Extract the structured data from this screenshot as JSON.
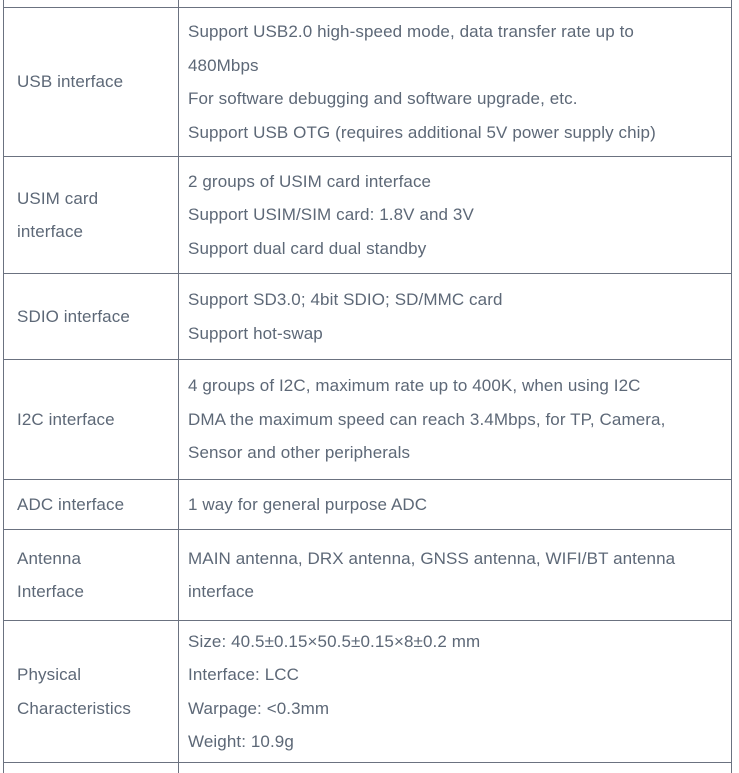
{
  "colors": {
    "text": "#5d6877",
    "border": "#6b7280",
    "background": "#ffffff"
  },
  "table": {
    "rows": [
      {
        "name": "usb-interface",
        "label_lines": [
          "USB interface"
        ],
        "value_lines": [
          "Support USB2.0 high-speed mode, data transfer rate up to",
          "480Mbps",
          "For software debugging and software upgrade, etc.",
          "Support USB OTG (requires additional 5V power supply chip)"
        ]
      },
      {
        "name": "usim-card-interface",
        "label_lines": [
          "USIM card",
          "interface"
        ],
        "value_lines": [
          "2 groups of USIM card interface",
          "Support USIM/SIM card: 1.8V and 3V",
          "Support dual card dual standby"
        ]
      },
      {
        "name": "sdio-interface",
        "label_lines": [
          "SDIO interface"
        ],
        "value_lines": [
          "Support SD3.0; 4bit SDIO; SD/MMC card",
          "Support hot-swap"
        ]
      },
      {
        "name": "i2c-interface",
        "label_lines": [
          "I2C interface"
        ],
        "value_lines": [
          "4 groups of I2C, maximum rate up to 400K, when using I2C",
          "DMA the maximum speed can reach 3.4Mbps, for TP, Camera,",
          "Sensor and other peripherals"
        ]
      },
      {
        "name": "adc-interface",
        "label_lines": [
          "ADC interface"
        ],
        "value_lines": [
          "1 way for general purpose ADC"
        ]
      },
      {
        "name": "antenna-interface",
        "label_lines": [
          "Antenna",
          "Interface"
        ],
        "value_lines": [
          "MAIN antenna, DRX antenna, GNSS antenna, WIFI/BT antenna",
          "interface"
        ]
      },
      {
        "name": "physical-characteristics",
        "label_lines": [
          "Physical",
          "Characteristics"
        ],
        "value_lines": [
          "Size: 40.5±0.15×50.5±0.15×8±0.2 mm",
          "Interface: LCC",
          "Warpage: <0.3mm",
          "Weight: 10.9g"
        ]
      }
    ]
  }
}
